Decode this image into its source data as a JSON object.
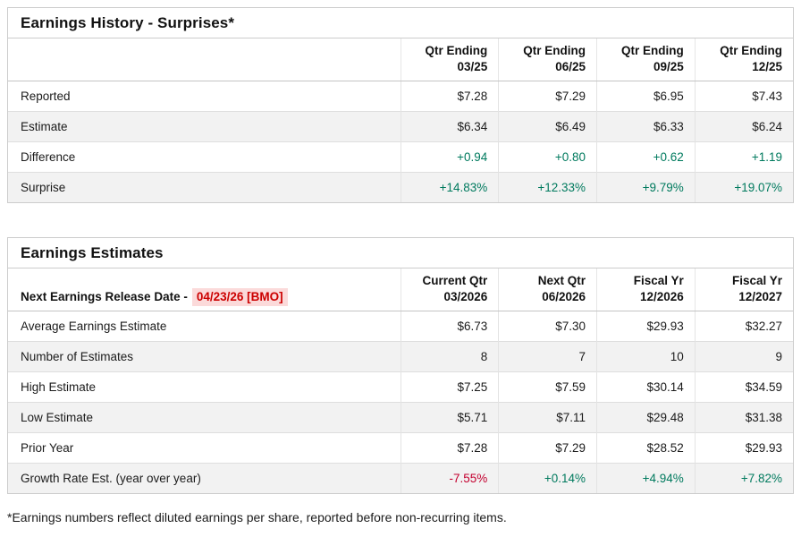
{
  "colors": {
    "positive": "#007a5e",
    "negative": "#c3002f",
    "highlight_bg": "#fbdada",
    "highlight_text": "#cc0000"
  },
  "surprises_table": {
    "title": "Earnings History - Surprises*",
    "columns": [
      "Qtr Ending\n03/25",
      "Qtr Ending\n06/25",
      "Qtr Ending\n09/25",
      "Qtr Ending\n12/25"
    ],
    "rows": [
      {
        "label": "Reported",
        "values": [
          "$7.28",
          "$7.29",
          "$6.95",
          "$7.43"
        ],
        "tones": [
          "default",
          "default",
          "default",
          "default"
        ]
      },
      {
        "label": "Estimate",
        "values": [
          "$6.34",
          "$6.49",
          "$6.33",
          "$6.24"
        ],
        "tones": [
          "default",
          "default",
          "default",
          "default"
        ]
      },
      {
        "label": "Difference",
        "values": [
          "+0.94",
          "+0.80",
          "+0.62",
          "+1.19"
        ],
        "tones": [
          "pos",
          "pos",
          "pos",
          "pos"
        ]
      },
      {
        "label": "Surprise",
        "values": [
          "+14.83%",
          "+12.33%",
          "+9.79%",
          "+19.07%"
        ],
        "tones": [
          "pos",
          "pos",
          "pos",
          "pos"
        ]
      }
    ]
  },
  "estimates_table": {
    "title": "Earnings Estimates",
    "release_label": "Next Earnings Release Date -",
    "release_date": "04/23/26 [BMO]",
    "columns": [
      "Current Qtr\n03/2026",
      "Next Qtr\n06/2026",
      "Fiscal Yr\n12/2026",
      "Fiscal Yr\n12/2027"
    ],
    "rows": [
      {
        "label": "Average Earnings Estimate",
        "values": [
          "$6.73",
          "$7.30",
          "$29.93",
          "$32.27"
        ],
        "tones": [
          "default",
          "default",
          "default",
          "default"
        ]
      },
      {
        "label": "Number of Estimates",
        "values": [
          "8",
          "7",
          "10",
          "9"
        ],
        "tones": [
          "default",
          "default",
          "default",
          "default"
        ]
      },
      {
        "label": "High Estimate",
        "values": [
          "$7.25",
          "$7.59",
          "$30.14",
          "$34.59"
        ],
        "tones": [
          "default",
          "default",
          "default",
          "default"
        ]
      },
      {
        "label": "Low Estimate",
        "values": [
          "$5.71",
          "$7.11",
          "$29.48",
          "$31.38"
        ],
        "tones": [
          "default",
          "default",
          "default",
          "default"
        ]
      },
      {
        "label": "Prior Year",
        "values": [
          "$7.28",
          "$7.29",
          "$28.52",
          "$29.93"
        ],
        "tones": [
          "default",
          "default",
          "default",
          "default"
        ]
      },
      {
        "label": "Growth Rate Est. (year over year)",
        "values": [
          "-7.55%",
          "+0.14%",
          "+4.94%",
          "+7.82%"
        ],
        "tones": [
          "neg",
          "pos",
          "pos",
          "pos"
        ]
      }
    ]
  },
  "footnote": "*Earnings numbers reflect diluted earnings per share, reported before non-recurring items."
}
